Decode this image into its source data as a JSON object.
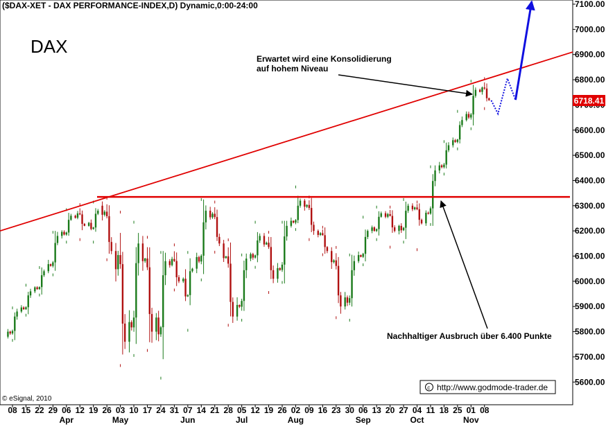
{
  "header": "($DAX-XET - DAX PERFORMANCE-INDEX,D) Dynamic,0:00-24:00",
  "instrument_label": "DAX",
  "copyright": "© eSignal, 2010",
  "website": "http://www.godmode-trader.de",
  "annotations": {
    "consolidation_line1": "Erwartet wird eine Konsolidierung",
    "consolidation_line2": "auf hohem Niveau",
    "breakout": "Nachhaltiger Ausbruch über 6.400 Punkte"
  },
  "colors": {
    "up_candle": "#1a7a1a",
    "down_candle": "#b01010",
    "trend_line": "#e00000",
    "forecast": "#1010e0",
    "price_label_bg": "#e00000"
  },
  "chart_data": {
    "type": "candlestick",
    "title": "($DAX-XET - DAX PERFORMANCE-INDEX,D) Dynamic,0:00-24:00",
    "ylim": [
      5550,
      7120
    ],
    "y_ticks": [
      5600,
      5700,
      5800,
      5900,
      6000,
      6100,
      6200,
      6300,
      6400,
      6500,
      6600,
      6700,
      6800,
      6900,
      7000,
      7100
    ],
    "y_tick_labels": [
      "5600.00",
      "5700.00",
      "5800.00",
      "5900.00",
      "6000.00",
      "6100.00",
      "6200.00",
      "6300.00",
      "6400.00",
      "6500.00",
      "6600.00",
      "6700.00",
      "6800.00",
      "6900.00",
      "7000.00",
      "7100.00"
    ],
    "x_ticks": [
      "08",
      "15",
      "22",
      "29",
      "06",
      "12",
      "19",
      "26",
      "03",
      "10",
      "17",
      "24",
      "31",
      "07",
      "14",
      "21",
      "28",
      "05",
      "12",
      "19",
      "26",
      "02",
      "09",
      "16",
      "23",
      "30",
      "06",
      "13",
      "20",
      "27",
      "04",
      "11",
      "18",
      "25",
      "01",
      "08"
    ],
    "months": [
      {
        "label": "Apr",
        "tick": "06"
      },
      {
        "label": "May",
        "tick": "03"
      },
      {
        "label": "Jun",
        "tick": "07"
      },
      {
        "label": "Jul",
        "tick": "05"
      },
      {
        "label": "Aug",
        "tick": "02"
      },
      {
        "label": "Sep",
        "tick": "06"
      },
      {
        "label": "Oct",
        "tick": "04"
      },
      {
        "label": "Nov",
        "tick": "01"
      }
    ],
    "last_price": 6718.41,
    "last_price_label": "6718.41",
    "support_level": 6335,
    "trend_line": {
      "from": {
        "tick": "08",
        "value": 6200
      },
      "to": {
        "tick": "08",
        "value": 6910
      },
      "extends_to_edge": true
    },
    "candles_weekly_approx": [
      {
        "week": "08",
        "open": 5780,
        "high": 5900,
        "low": 5760,
        "close": 5880
      },
      {
        "week": "15",
        "open": 5880,
        "high": 5990,
        "low": 5860,
        "close": 5960
      },
      {
        "week": "22",
        "open": 5960,
        "high": 6060,
        "low": 5940,
        "close": 6040
      },
      {
        "week": "29",
        "open": 6040,
        "high": 6200,
        "low": 6020,
        "close": 6180
      },
      {
        "week": "06",
        "open": 6180,
        "high": 6290,
        "low": 6150,
        "close": 6260
      },
      {
        "week": "12",
        "open": 6260,
        "high": 6310,
        "low": 6160,
        "close": 6220
      },
      {
        "week": "19",
        "open": 6220,
        "high": 6320,
        "low": 6150,
        "close": 6280
      },
      {
        "week": "26",
        "open": 6300,
        "high": 6335,
        "low": 6080,
        "close": 6120
      },
      {
        "week": "03",
        "open": 6120,
        "high": 6280,
        "low": 5660,
        "close": 5760
      },
      {
        "week": "10",
        "open": 5760,
        "high": 6240,
        "low": 5700,
        "close": 6150
      },
      {
        "week": "17",
        "open": 6150,
        "high": 6180,
        "low": 5720,
        "close": 5800
      },
      {
        "week": "24",
        "open": 5800,
        "high": 6120,
        "low": 5610,
        "close": 6080
      },
      {
        "week": "31",
        "open": 6080,
        "high": 6150,
        "low": 5960,
        "close": 6000
      },
      {
        "week": "07",
        "open": 6000,
        "high": 6120,
        "low": 5800,
        "close": 6050
      },
      {
        "week": "14",
        "open": 6050,
        "high": 6330,
        "low": 6000,
        "close": 6280
      },
      {
        "week": "21",
        "open": 6280,
        "high": 6320,
        "low": 6110,
        "close": 6150
      },
      {
        "week": "28",
        "open": 6150,
        "high": 6170,
        "low": 5820,
        "close": 5860
      },
      {
        "week": "05",
        "open": 5860,
        "high": 6110,
        "low": 5840,
        "close": 6090
      },
      {
        "week": "12",
        "open": 6090,
        "high": 6240,
        "low": 6050,
        "close": 6180
      },
      {
        "week": "19",
        "open": 6180,
        "high": 6200,
        "low": 5950,
        "close": 6010
      },
      {
        "week": "26",
        "open": 6010,
        "high": 6240,
        "low": 5990,
        "close": 6220
      },
      {
        "week": "02",
        "open": 6220,
        "high": 6380,
        "low": 6200,
        "close": 6320
      },
      {
        "week": "09",
        "open": 6320,
        "high": 6340,
        "low": 6160,
        "close": 6200
      },
      {
        "week": "16",
        "open": 6200,
        "high": 6220,
        "low": 6100,
        "close": 6120
      },
      {
        "week": "23",
        "open": 6120,
        "high": 6140,
        "low": 5850,
        "close": 5900
      },
      {
        "week": "30",
        "open": 5900,
        "high": 6110,
        "low": 5840,
        "close": 6080
      },
      {
        "week": "06",
        "open": 6080,
        "high": 6260,
        "low": 6060,
        "close": 6200
      },
      {
        "week": "13",
        "open": 6200,
        "high": 6300,
        "low": 6160,
        "close": 6270
      },
      {
        "week": "20",
        "open": 6270,
        "high": 6300,
        "low": 6130,
        "close": 6200
      },
      {
        "week": "27",
        "open": 6200,
        "high": 6330,
        "low": 6150,
        "close": 6300
      },
      {
        "week": "04",
        "open": 6300,
        "high": 6320,
        "low": 6120,
        "close": 6230
      },
      {
        "week": "11",
        "open": 6230,
        "high": 6460,
        "low": 6220,
        "close": 6440
      },
      {
        "week": "18",
        "open": 6440,
        "high": 6560,
        "low": 6420,
        "close": 6540
      },
      {
        "week": "25",
        "open": 6540,
        "high": 6680,
        "low": 6520,
        "close": 6640
      },
      {
        "week": "01",
        "open": 6640,
        "high": 6800,
        "low": 6600,
        "close": 6760
      },
      {
        "week": "08",
        "open": 6760,
        "high": 6810,
        "low": 6680,
        "close": 6718.41
      }
    ],
    "forecast_path": [
      {
        "tick": "08",
        "offset": 0.5,
        "value": 6718
      },
      {
        "tick": "08",
        "offset": 1.0,
        "value": 6665
      },
      {
        "tick": "08",
        "offset": 1.7,
        "value": 6805
      },
      {
        "tick": "08",
        "offset": 2.3,
        "value": 6720
      },
      {
        "tick": "08",
        "offset": 3.5,
        "value": 7110
      }
    ]
  }
}
